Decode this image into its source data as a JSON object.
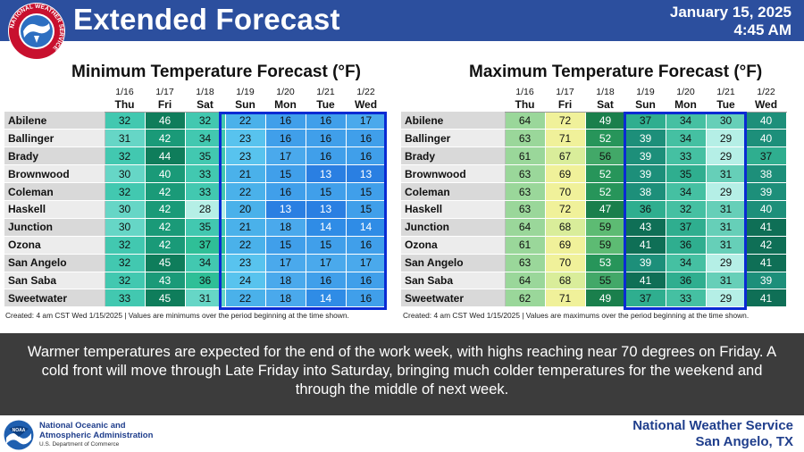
{
  "header": {
    "title": "Extended Forecast",
    "date": "January 15, 2025",
    "time": "4:45 AM",
    "logo_text": "NATIONAL WEATHER SERVICE"
  },
  "colors": {
    "header_bg": "#2c4f9e",
    "highlight_box": "#0a2bd3",
    "banner_bg": "#3c3c3c",
    "footer_text": "#1f3e8c"
  },
  "chart_data": [
    {
      "type": "table",
      "title": "Minimum Temperature Forecast (°F)",
      "columns": [
        {
          "date": "1/16",
          "day": "Thu"
        },
        {
          "date": "1/17",
          "day": "Fri"
        },
        {
          "date": "1/18",
          "day": "Sat"
        },
        {
          "date": "1/19",
          "day": "Sun"
        },
        {
          "date": "1/20",
          "day": "Mon"
        },
        {
          "date": "1/21",
          "day": "Tue"
        },
        {
          "date": "1/22",
          "day": "Wed"
        }
      ],
      "rows": [
        {
          "city": "Abilene",
          "values": [
            32,
            46,
            32,
            22,
            16,
            16,
            17
          ]
        },
        {
          "city": "Ballinger",
          "values": [
            31,
            42,
            34,
            23,
            16,
            16,
            16
          ]
        },
        {
          "city": "Brady",
          "values": [
            32,
            44,
            35,
            23,
            17,
            16,
            16
          ]
        },
        {
          "city": "Brownwood",
          "values": [
            30,
            40,
            33,
            21,
            15,
            13,
            13
          ]
        },
        {
          "city": "Coleman",
          "values": [
            32,
            42,
            33,
            22,
            16,
            15,
            15
          ]
        },
        {
          "city": "Haskell",
          "values": [
            30,
            42,
            28,
            20,
            13,
            13,
            15
          ]
        },
        {
          "city": "Junction",
          "values": [
            30,
            42,
            35,
            21,
            18,
            14,
            14
          ]
        },
        {
          "city": "Ozona",
          "values": [
            32,
            42,
            37,
            22,
            15,
            15,
            16
          ]
        },
        {
          "city": "San Angelo",
          "values": [
            32,
            45,
            34,
            23,
            17,
            17,
            17
          ]
        },
        {
          "city": "San Saba",
          "values": [
            32,
            43,
            36,
            24,
            18,
            16,
            16
          ]
        },
        {
          "city": "Sweetwater",
          "values": [
            33,
            45,
            31,
            22,
            18,
            14,
            16
          ]
        }
      ],
      "highlight_columns": [
        "Sun",
        "Mon",
        "Tue",
        "Wed"
      ],
      "note": "Created: 4 am CST Wed 1/15/2025  |  Values are minimums over the period beginning at the time shown."
    },
    {
      "type": "table",
      "title": "Maximum Temperature Forecast (°F)",
      "columns": [
        {
          "date": "1/16",
          "day": "Thu"
        },
        {
          "date": "1/17",
          "day": "Fri"
        },
        {
          "date": "1/18",
          "day": "Sat"
        },
        {
          "date": "1/19",
          "day": "Sun"
        },
        {
          "date": "1/20",
          "day": "Mon"
        },
        {
          "date": "1/21",
          "day": "Tue"
        },
        {
          "date": "1/22",
          "day": "Wed"
        }
      ],
      "rows": [
        {
          "city": "Abilene",
          "values": [
            64,
            72,
            49,
            37,
            34,
            30,
            40
          ]
        },
        {
          "city": "Ballinger",
          "values": [
            63,
            71,
            52,
            39,
            34,
            29,
            40
          ]
        },
        {
          "city": "Brady",
          "values": [
            61,
            67,
            56,
            39,
            33,
            29,
            37
          ]
        },
        {
          "city": "Brownwood",
          "values": [
            63,
            69,
            52,
            39,
            35,
            31,
            38
          ]
        },
        {
          "city": "Coleman",
          "values": [
            63,
            70,
            52,
            38,
            34,
            29,
            39
          ]
        },
        {
          "city": "Haskell",
          "values": [
            63,
            72,
            47,
            36,
            32,
            31,
            40
          ]
        },
        {
          "city": "Junction",
          "values": [
            64,
            68,
            59,
            43,
            37,
            31,
            41
          ]
        },
        {
          "city": "Ozona",
          "values": [
            61,
            69,
            59,
            41,
            36,
            31,
            42
          ]
        },
        {
          "city": "San Angelo",
          "values": [
            63,
            70,
            53,
            39,
            34,
            29,
            41
          ]
        },
        {
          "city": "San Saba",
          "values": [
            64,
            68,
            55,
            41,
            36,
            31,
            39
          ]
        },
        {
          "city": "Sweetwater",
          "values": [
            62,
            71,
            49,
            37,
            33,
            29,
            41
          ]
        }
      ],
      "highlight_columns": [
        "Sun",
        "Mon",
        "Tue"
      ],
      "note": "Created: 4 am CST Wed 1/15/2025  |  Values are maximums over the period beginning at the time shown."
    }
  ],
  "banner": {
    "text": "Warmer temperatures are expected for the end of the work week, with highs reaching near 70 degrees on Friday. A cold front will move through Late Friday into Saturday, bringing much colder temperatures for the weekend and through the middle of next week."
  },
  "footer": {
    "noaa_line1": "National Oceanic and",
    "noaa_line2": "Atmospheric Administration",
    "noaa_line3": "U.S. Department of Commerce",
    "noaa_logo_text": "NOAA",
    "office_line1": "National Weather Service",
    "office_line2": "San Angelo, TX"
  }
}
